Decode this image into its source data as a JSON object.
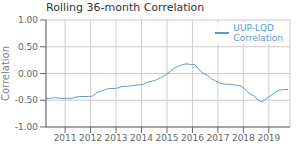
{
  "chart_data": {
    "type": "line",
    "title": "Rolling 36-month Correlation",
    "ylabel": "Correlation",
    "x": [
      2010.25,
      2010.42,
      2010.58,
      2010.75,
      2010.92,
      2011.08,
      2011.25,
      2011.42,
      2011.58,
      2011.75,
      2011.92,
      2012.08,
      2012.25,
      2012.42,
      2012.58,
      2012.75,
      2012.92,
      2013.08,
      2013.25,
      2013.42,
      2013.58,
      2013.75,
      2013.92,
      2014.08,
      2014.25,
      2014.42,
      2014.58,
      2014.75,
      2014.92,
      2015.08,
      2015.25,
      2015.42,
      2015.58,
      2015.75,
      2015.92,
      2016.08,
      2016.25,
      2016.42,
      2016.58,
      2016.75,
      2016.92,
      2017.08,
      2017.25,
      2017.42,
      2017.58,
      2017.75,
      2017.92,
      2018.08,
      2018.25,
      2018.42,
      2018.58,
      2018.75,
      2018.92,
      2019.08,
      2019.25,
      2019.42,
      2019.58,
      2019.75
    ],
    "series": [
      {
        "name": "UUP-LQD\nCorrelation",
        "color": "#5b9bd5",
        "values": [
          -0.46,
          -0.47,
          -0.45,
          -0.46,
          -0.47,
          -0.46,
          -0.47,
          -0.44,
          -0.43,
          -0.43,
          -0.43,
          -0.42,
          -0.36,
          -0.33,
          -0.3,
          -0.28,
          -0.28,
          -0.27,
          -0.24,
          -0.24,
          -0.23,
          -0.22,
          -0.21,
          -0.2,
          -0.16,
          -0.14,
          -0.12,
          -0.08,
          -0.03,
          0.02,
          0.09,
          0.13,
          0.16,
          0.18,
          0.17,
          0.17,
          0.08,
          0.0,
          -0.03,
          -0.1,
          -0.14,
          -0.18,
          -0.2,
          -0.2,
          -0.21,
          -0.22,
          -0.24,
          -0.3,
          -0.38,
          -0.42,
          -0.5,
          -0.53,
          -0.46,
          -0.41,
          -0.35,
          -0.31,
          -0.3,
          -0.3
        ]
      }
    ],
    "xlim": [
      2010.25,
      2019.83
    ],
    "xticks": [
      2011,
      2012,
      2013,
      2014,
      2015,
      2016,
      2017,
      2018,
      2019
    ],
    "ylim": [
      -1.0,
      1.0
    ],
    "yticks": [
      {
        "value": -1.0,
        "label": "-1.00"
      },
      {
        "value": -0.5,
        "label": "-0.50"
      },
      {
        "value": 0.0,
        "label": "0.00"
      },
      {
        "value": 0.5,
        "label": "0.50"
      },
      {
        "value": 1.0,
        "label": "1.00"
      }
    ],
    "grid": true,
    "legend": "upper right"
  }
}
